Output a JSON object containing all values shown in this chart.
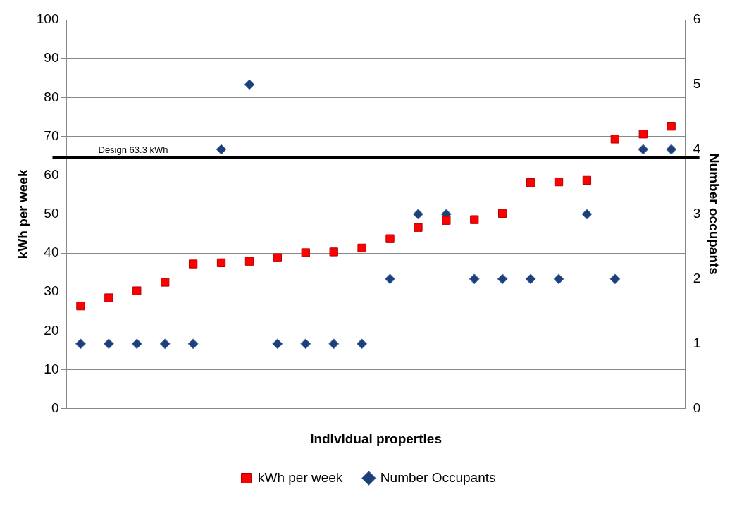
{
  "chart_data": {
    "type": "scatter",
    "xlabel": "Individual properties",
    "ylabel": "kWh per week",
    "y2label": "Number occupants",
    "categories": [
      null,
      null,
      null,
      null,
      null,
      null,
      null,
      null,
      null,
      null,
      null,
      null,
      null,
      null,
      null,
      null,
      null,
      null,
      null,
      null,
      null,
      null
    ],
    "series": [
      {
        "name": "kWh per week",
        "color": "#ff0000",
        "marker": "square",
        "values": [
          26.4,
          28.5,
          30.3,
          32.5,
          37.2,
          37.5,
          37.9,
          38.8,
          40.1,
          40.3,
          41.3,
          43.7,
          46.6,
          48.4,
          48.6,
          50.2,
          58.1,
          58.3,
          58.7,
          69.3,
          70.6,
          72.6
        ]
      },
      {
        "name": "Number Occupants",
        "color": "#1f3f7a",
        "marker": "diamond",
        "axis": "y2",
        "values": [
          1,
          1,
          1,
          1,
          1,
          4,
          5,
          1,
          1,
          1,
          1,
          2,
          3,
          3,
          2,
          2,
          2,
          2,
          3,
          2,
          4,
          4
        ]
      }
    ],
    "ylim": [
      0,
      100
    ],
    "yticks": [
      0,
      10,
      20,
      30,
      40,
      50,
      60,
      70,
      80,
      90,
      100
    ],
    "y2lim": [
      0,
      6
    ],
    "y2ticks": [
      0,
      1,
      2,
      3,
      4,
      5,
      6
    ],
    "ref_lines": [
      {
        "axis": "y",
        "value": 64.5,
        "label": "Design 63.3 kWh",
        "color": "#000000"
      }
    ],
    "grid": "y",
    "legend": "bottom"
  }
}
